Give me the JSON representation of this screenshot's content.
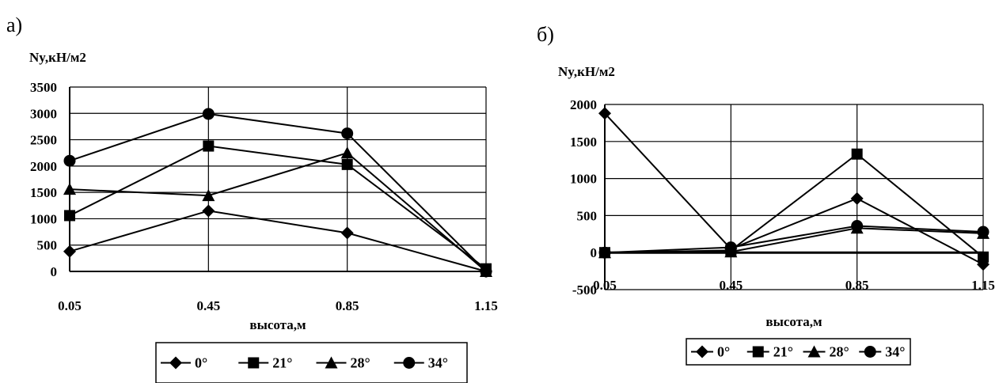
{
  "chart_data": [
    {
      "panel_label": "а)",
      "type": "line",
      "title": "Ny,кН/м2",
      "xlabel": "высота,м",
      "ylabel": "",
      "categories": [
        "0.05",
        "0.45",
        "0.85",
        "1.15"
      ],
      "ylim": [
        0,
        3500
      ],
      "yticks": [
        0,
        500,
        1000,
        1500,
        2000,
        2500,
        3000,
        3500
      ],
      "ytick_labels": [
        "0",
        "500",
        "1000",
        "1500",
        "2000",
        "2500",
        "3000",
        "3500"
      ],
      "grid": true,
      "legend_position": "bottom",
      "series": [
        {
          "name": "0°",
          "marker": "diamond",
          "values": [
            380,
            1150,
            730,
            0
          ]
        },
        {
          "name": "21°",
          "marker": "square",
          "values": [
            1060,
            2380,
            2030,
            50
          ]
        },
        {
          "name": "28°",
          "marker": "triangle",
          "values": [
            1560,
            1440,
            2250,
            0
          ]
        },
        {
          "name": "34°",
          "marker": "circle",
          "values": [
            2100,
            2990,
            2620,
            0
          ]
        }
      ]
    },
    {
      "panel_label": "б)",
      "type": "line",
      "title": "Ny,кН/м2",
      "xlabel": "высота,м",
      "ylabel": "",
      "categories": [
        "0.05",
        "0.45",
        "0.85",
        "1.15"
      ],
      "ylim": [
        -500,
        2000
      ],
      "yticks": [
        -500,
        0,
        500,
        1000,
        1500,
        2000
      ],
      "ytick_labels": [
        "-500",
        "0",
        "500",
        "1000",
        "1500",
        "2000"
      ],
      "grid": true,
      "legend_position": "bottom",
      "series": [
        {
          "name": "0°",
          "marker": "diamond",
          "values": [
            1880,
            50,
            730,
            -160
          ]
        },
        {
          "name": "21°",
          "marker": "square",
          "values": [
            0,
            30,
            1330,
            -60
          ]
        },
        {
          "name": "28°",
          "marker": "triangle",
          "values": [
            0,
            10,
            330,
            260
          ]
        },
        {
          "name": "34°",
          "marker": "circle",
          "values": [
            0,
            70,
            360,
            280
          ]
        }
      ]
    }
  ]
}
